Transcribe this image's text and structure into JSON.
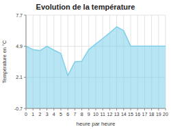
{
  "chart_data": {
    "type": "area",
    "title": "Evolution de la température",
    "x_label": "heure par heure",
    "y_label": "Température en °C",
    "x": [
      0,
      1,
      2,
      3,
      4,
      5,
      6,
      7,
      8,
      9,
      10,
      11,
      12,
      13,
      14,
      15,
      16,
      17,
      18,
      19,
      20
    ],
    "values": [
      4.9,
      4.6,
      4.5,
      4.9,
      4.55,
      4.25,
      2.25,
      3.5,
      3.55,
      4.6,
      5.1,
      5.6,
      6.1,
      6.65,
      6.3,
      4.9,
      4.9,
      4.9,
      4.9,
      4.9,
      4.9
    ],
    "color": "#7ecfea",
    "xlim": [
      0,
      20
    ],
    "xticks": [
      0,
      1,
      2,
      3,
      4,
      5,
      6,
      7,
      8,
      9,
      10,
      11,
      12,
      13,
      14,
      15,
      16,
      17,
      18,
      19,
      20
    ],
    "ylim": [
      -0.7,
      7.7
    ],
    "yticks": [
      -0.7,
      2.1,
      4.9,
      7.7
    ],
    "grid": true
  }
}
